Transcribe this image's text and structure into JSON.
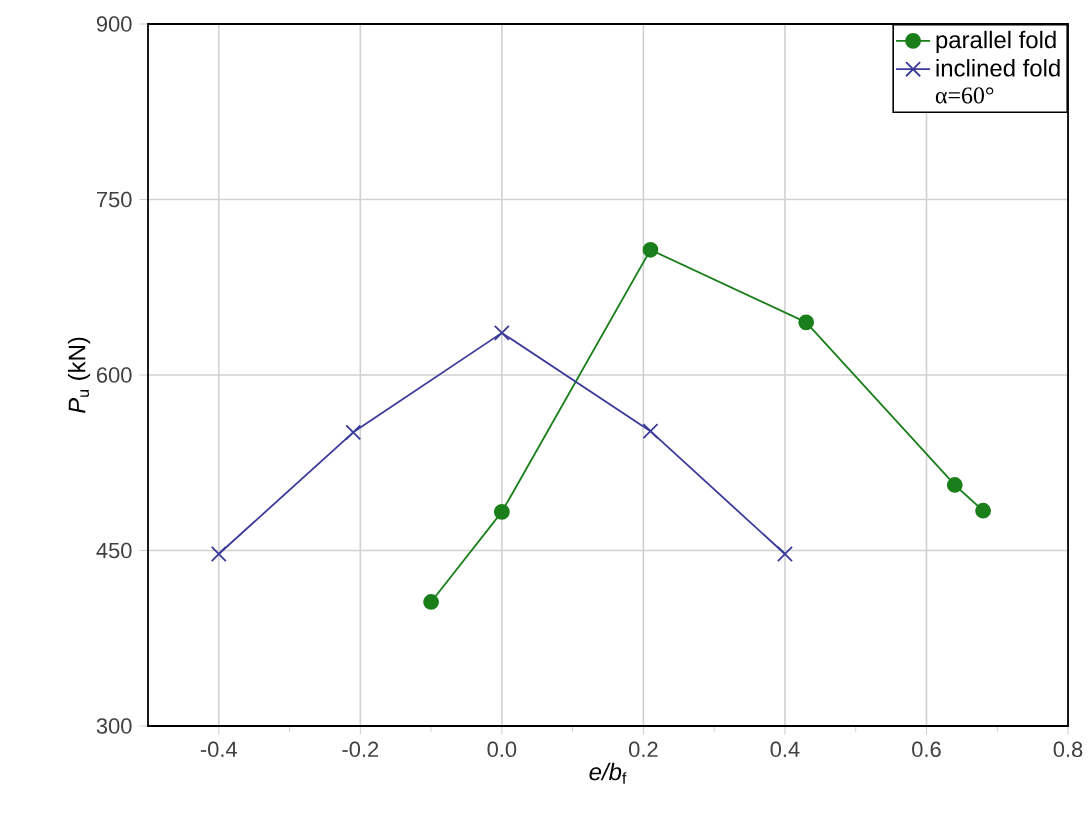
{
  "chart_data": {
    "type": "line",
    "xlabel": "*e/b*$_{f}$",
    "ylabel": "*P*$_{u}$ (kN)",
    "x": [
      -0.1,
      0.0,
      0.21,
      0.43,
      0.64,
      0.68
    ],
    "series": [
      {
        "name": "parallel fold",
        "color": "#1a7f1a",
        "marker": "circle",
        "values": [
          406,
          483,
          707,
          645,
          506,
          484
        ]
      },
      {
        "name": "inclined fold",
        "color": "#3a3a9a",
        "marker": "cross",
        "x": [
          -0.4,
          -0.21,
          0.0,
          0.21,
          0.4
        ],
        "values": [
          447,
          551,
          636,
          552,
          447
        ]
      }
    ],
    "annotations": [
      "α=60°"
    ],
    "xlim": [
      -0.5,
      0.8
    ],
    "ylim": [
      300,
      900
    ],
    "xticks": [
      {
        "value": -0.4,
        "label": "-0.4"
      },
      {
        "value": -0.2,
        "label": "-0.2"
      },
      {
        "value": 0.0,
        "label": "0.0"
      },
      {
        "value": 0.2,
        "label": "0.2"
      },
      {
        "value": 0.4,
        "label": "0.4"
      },
      {
        "value": 0.6,
        "label": "0.6"
      },
      {
        "value": 0.8,
        "label": "0.8"
      }
    ],
    "yticks": [
      300,
      450,
      600,
      750,
      900
    ],
    "grid": true,
    "legend": "top right",
    "line_style": "solid"
  }
}
